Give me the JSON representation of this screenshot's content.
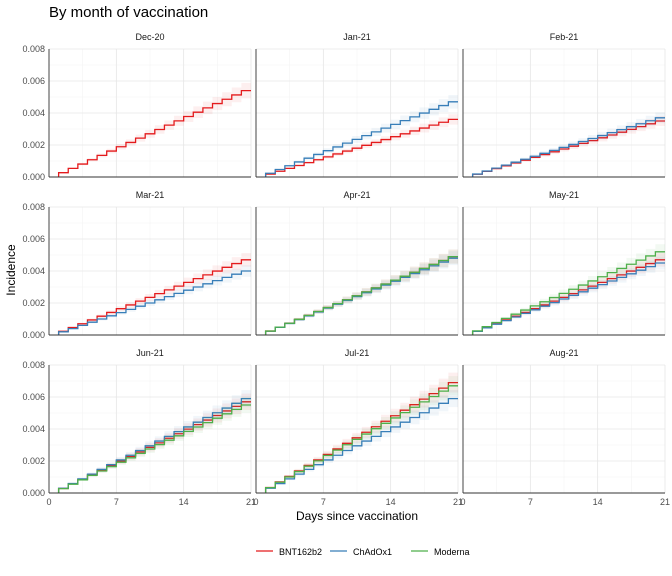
{
  "chart_data": {
    "type": "line",
    "title": "By month of vaccination",
    "xlabel": "Days since vaccination",
    "ylabel": "Incidence",
    "xlim": [
      0,
      21
    ],
    "ylim": [
      0,
      0.008
    ],
    "x_ticks": [
      "0",
      "7",
      "14",
      "21"
    ],
    "y_ticks": [
      "0.000",
      "0.002",
      "0.004",
      "0.006",
      "0.008"
    ],
    "grid": true,
    "legend_position": "bottom",
    "series_colors": {
      "BNT162b2": "#e41a1c",
      "ChAdOx1": "#377eb8",
      "Moderna": "#4daf4a"
    },
    "legend": [
      "BNT162b2",
      "ChAdOx1",
      "Moderna"
    ],
    "panels": [
      {
        "label": "Dec-20",
        "series": [
          {
            "name": "BNT162b2",
            "end": 0.0054
          }
        ]
      },
      {
        "label": "Jan-21",
        "series": [
          {
            "name": "BNT162b2",
            "end": 0.0036
          },
          {
            "name": "ChAdOx1",
            "end": 0.0047
          }
        ]
      },
      {
        "label": "Feb-21",
        "series": [
          {
            "name": "BNT162b2",
            "end": 0.0035
          },
          {
            "name": "ChAdOx1",
            "end": 0.0037
          }
        ]
      },
      {
        "label": "Mar-21",
        "series": [
          {
            "name": "BNT162b2",
            "end": 0.0047
          },
          {
            "name": "ChAdOx1",
            "end": 0.004
          }
        ]
      },
      {
        "label": "Apr-21",
        "series": [
          {
            "name": "BNT162b2",
            "end": 0.0049
          },
          {
            "name": "ChAdOx1",
            "end": 0.0048
          },
          {
            "name": "Moderna",
            "end": 0.0049
          }
        ]
      },
      {
        "label": "May-21",
        "series": [
          {
            "name": "BNT162b2",
            "end": 0.0047
          },
          {
            "name": "ChAdOx1",
            "end": 0.0045
          },
          {
            "name": "Moderna",
            "end": 0.0052
          }
        ]
      },
      {
        "label": "Jun-21",
        "series": [
          {
            "name": "BNT162b2",
            "end": 0.0057
          },
          {
            "name": "ChAdOx1",
            "end": 0.0059
          },
          {
            "name": "Moderna",
            "end": 0.0055
          }
        ]
      },
      {
        "label": "Jul-21",
        "series": [
          {
            "name": "BNT162b2",
            "end": 0.0069
          },
          {
            "name": "ChAdOx1",
            "end": 0.0059
          },
          {
            "name": "Moderna",
            "end": 0.0067
          }
        ]
      },
      {
        "label": "Aug-21",
        "series": []
      }
    ]
  }
}
